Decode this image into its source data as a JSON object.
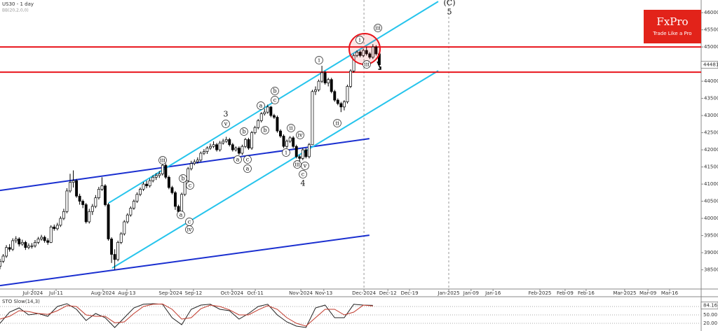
{
  "chart_data": {
    "type": "candlestick",
    "title": "US30 - 1 day",
    "subtitle": "BB(20,2,0,0)",
    "xlim": [
      -10,
      210
    ],
    "ylim": [
      37940,
      46370
    ],
    "xticks": [
      {
        "value": 0.3,
        "label": "Jul-2024"
      },
      {
        "value": 7.6,
        "label": "Jul-11"
      },
      {
        "value": 22.3,
        "label": "Aug-2024"
      },
      {
        "value": 29.8,
        "label": "Aug-13"
      },
      {
        "value": 43.5,
        "label": "Sep-2024"
      },
      {
        "value": 50.7,
        "label": "Sep-12"
      },
      {
        "value": 62.8,
        "label": "Oct-2024"
      },
      {
        "value": 70.1,
        "label": "Oct-11"
      },
      {
        "value": 84.4,
        "label": "Nov-2024"
      },
      {
        "value": 91.6,
        "label": "Nov-13"
      },
      {
        "value": 104.2,
        "label": "Dec-2024"
      },
      {
        "value": 111.7,
        "label": "Dec-12"
      },
      {
        "value": 118.5,
        "label": "Dec-19"
      },
      {
        "value": 130.8,
        "label": "Jan-2025"
      },
      {
        "value": 137.8,
        "label": "Jan-09"
      },
      {
        "value": 144.7,
        "label": "Jan-16"
      },
      {
        "value": 159.4,
        "label": "Feb-2025"
      },
      {
        "value": 167.3,
        "label": "Feb-09"
      },
      {
        "value": 173.9,
        "label": "Feb-16"
      },
      {
        "value": 186,
        "label": "Mar-2025"
      },
      {
        "value": 193.3,
        "label": "Mar-09"
      },
      {
        "value": 200.1,
        "label": "Mar-16"
      }
    ],
    "yticks": [
      38500,
      39000,
      39500,
      40000,
      40500,
      41000,
      41500,
      42000,
      42500,
      43000,
      43500,
      44000,
      44500,
      45000,
      45500,
      46000
    ],
    "last_price": 44481,
    "candles": [
      [
        -10,
        38600,
        38820,
        38520,
        38750
      ],
      [
        -9,
        38750,
        38960,
        38700,
        38900
      ],
      [
        -8,
        38900,
        39220,
        38850,
        39150
      ],
      [
        -7,
        39150,
        39250,
        39030,
        39100
      ],
      [
        -6,
        39100,
        39420,
        39050,
        39350
      ],
      [
        -5,
        39350,
        39480,
        39280,
        39400
      ],
      [
        -4,
        39400,
        39450,
        39180,
        39250
      ],
      [
        -3,
        39250,
        39380,
        39200,
        39300
      ],
      [
        -2,
        39300,
        39350,
        39080,
        39150
      ],
      [
        -1,
        39150,
        39270,
        39100,
        39200
      ],
      [
        0,
        39180,
        39280,
        39120,
        39200
      ],
      [
        1,
        39200,
        39370,
        39150,
        39300
      ],
      [
        2,
        39300,
        39460,
        39250,
        39400
      ],
      [
        3,
        39400,
        39520,
        39350,
        39450
      ],
      [
        4,
        39450,
        39500,
        39290,
        39350
      ],
      [
        5,
        39350,
        39420,
        39230,
        39300
      ],
      [
        6,
        39300,
        39800,
        39280,
        39750
      ],
      [
        7,
        39750,
        39820,
        39640,
        39700
      ],
      [
        8,
        39700,
        39870,
        39650,
        39800
      ],
      [
        9,
        39800,
        40060,
        39750,
        40000
      ],
      [
        10,
        40000,
        40280,
        39950,
        40200
      ],
      [
        11,
        40200,
        40880,
        40150,
        40800
      ],
      [
        12,
        40800,
        41300,
        40750,
        41050
      ],
      [
        13,
        41050,
        41400,
        40900,
        41100
      ],
      [
        14,
        41100,
        41150,
        40600,
        40650
      ],
      [
        15,
        40650,
        40720,
        40400,
        40500
      ],
      [
        16,
        40500,
        40550,
        40300,
        40400
      ],
      [
        17,
        40400,
        40450,
        39850,
        39900
      ],
      [
        18,
        39900,
        40280,
        39850,
        40200
      ],
      [
        19,
        40200,
        40420,
        40100,
        40350
      ],
      [
        20,
        40350,
        40680,
        40300,
        40600
      ],
      [
        21,
        40600,
        40920,
        40550,
        40850
      ],
      [
        22,
        40850,
        41200,
        40800,
        40950
      ],
      [
        23,
        40950,
        41000,
        40350,
        40400
      ],
      [
        24,
        40400,
        40450,
        39350,
        39400
      ],
      [
        25,
        39400,
        39450,
        38700,
        38950
      ],
      [
        26,
        38950,
        39100,
        38500,
        38800
      ],
      [
        27,
        38800,
        39350,
        38750,
        39300
      ],
      [
        28,
        39300,
        39600,
        39250,
        39550
      ],
      [
        29,
        39550,
        39950,
        39500,
        39900
      ],
      [
        30,
        39900,
        40150,
        39850,
        40100
      ],
      [
        31,
        40100,
        40350,
        40050,
        40300
      ],
      [
        32,
        40300,
        40550,
        40250,
        40500
      ],
      [
        33,
        40500,
        40760,
        40450,
        40700
      ],
      [
        34,
        40700,
        40900,
        40650,
        40850
      ],
      [
        35,
        40850,
        41060,
        40800,
        41000
      ],
      [
        36,
        41000,
        41100,
        40880,
        40950
      ],
      [
        37,
        40950,
        41160,
        40900,
        41100
      ],
      [
        38,
        41100,
        41260,
        41050,
        41200
      ],
      [
        39,
        41200,
        41320,
        41120,
        41250
      ],
      [
        40,
        41250,
        41380,
        41180,
        41300
      ],
      [
        41,
        41300,
        41620,
        41250,
        41550
      ],
      [
        42,
        41550,
        41600,
        41150,
        41200
      ],
      [
        43,
        41200,
        41250,
        40850,
        40900
      ],
      [
        44,
        40900,
        40950,
        40700,
        40750
      ],
      [
        45,
        40750,
        40800,
        40250,
        40350
      ],
      [
        46,
        40350,
        40400,
        40150,
        40200
      ],
      [
        47,
        40200,
        40750,
        40150,
        40700
      ],
      [
        48,
        40700,
        41150,
        40650,
        41100
      ],
      [
        49,
        41100,
        41500,
        41050,
        41450
      ],
      [
        50,
        41450,
        41680,
        41400,
        41600
      ],
      [
        51,
        41600,
        41720,
        41550,
        41650
      ],
      [
        52,
        41650,
        41780,
        41600,
        41700
      ],
      [
        53,
        41700,
        41950,
        41650,
        41900
      ],
      [
        54,
        41900,
        42020,
        41850,
        41950
      ],
      [
        55,
        41950,
        42100,
        41880,
        42050
      ],
      [
        56,
        42050,
        42180,
        42000,
        42100
      ],
      [
        57,
        42100,
        42250,
        42050,
        42150
      ],
      [
        58,
        42150,
        42200,
        41950,
        42000
      ],
      [
        59,
        42000,
        42260,
        41950,
        42200
      ],
      [
        60,
        42200,
        42320,
        42150,
        42250
      ],
      [
        61,
        42250,
        42380,
        42200,
        42300
      ],
      [
        62,
        42300,
        42350,
        42100,
        42150
      ],
      [
        63,
        42150,
        42200,
        41950,
        42000
      ],
      [
        64,
        42000,
        42100,
        41950,
        42050
      ],
      [
        65,
        42050,
        42100,
        41850,
        41900
      ],
      [
        66,
        41900,
        42150,
        41850,
        42100
      ],
      [
        67,
        42100,
        42350,
        42050,
        42300
      ],
      [
        68,
        42300,
        42350,
        42000,
        42050
      ],
      [
        69,
        42050,
        42550,
        42000,
        42500
      ],
      [
        70,
        42500,
        42700,
        42450,
        42650
      ],
      [
        71,
        42650,
        42900,
        42600,
        42850
      ],
      [
        72,
        42850,
        43100,
        42800,
        43050
      ],
      [
        73,
        43050,
        43200,
        43000,
        43100
      ],
      [
        74,
        43100,
        43320,
        43050,
        43250
      ],
      [
        75,
        43250,
        43280,
        42950,
        43000
      ],
      [
        76,
        43000,
        43050,
        42900,
        42950
      ],
      [
        77,
        42950,
        43000,
        42500,
        42550
      ],
      [
        78,
        42550,
        42600,
        42350,
        42400
      ],
      [
        79,
        42400,
        42450,
        42050,
        42100
      ],
      [
        80,
        42100,
        42300,
        42050,
        42250
      ],
      [
        81,
        42250,
        42400,
        42200,
        42350
      ],
      [
        82,
        42350,
        42400,
        42050,
        42100
      ],
      [
        83,
        42100,
        42150,
        41750,
        41800
      ],
      [
        84,
        41800,
        41850,
        41650,
        41750
      ],
      [
        85,
        41750,
        42050,
        41700,
        42000
      ],
      [
        86,
        42000,
        42050,
        41750,
        41800
      ],
      [
        87,
        41800,
        42200,
        41750,
        42150
      ],
      [
        88,
        42150,
        43750,
        42150,
        43700
      ],
      [
        89,
        43700,
        43850,
        43600,
        43750
      ],
      [
        90,
        43750,
        44050,
        43700,
        44000
      ],
      [
        91,
        44000,
        44450,
        43950,
        44250
      ],
      [
        92,
        44250,
        44300,
        43900,
        43950
      ],
      [
        93,
        43950,
        44100,
        43850,
        44050
      ],
      [
        94,
        44050,
        44100,
        43650,
        43700
      ],
      [
        95,
        43700,
        43750,
        43400,
        43450
      ],
      [
        96,
        43450,
        43500,
        43300,
        43350
      ],
      [
        97,
        43350,
        43400,
        43100,
        43250
      ],
      [
        98,
        43250,
        43450,
        43150,
        43400
      ],
      [
        99,
        43400,
        43900,
        43350,
        43850
      ],
      [
        100,
        43850,
        44350,
        43800,
        44300
      ],
      [
        101,
        44300,
        44800,
        44250,
        44750
      ],
      [
        102,
        44750,
        44900,
        44700,
        44850
      ],
      [
        103,
        44850,
        44900,
        44700,
        44750
      ],
      [
        104,
        44750,
        44950,
        44700,
        44900
      ],
      [
        105,
        44900,
        45000,
        44750,
        44800
      ],
      [
        106,
        44800,
        44850,
        44650,
        44700
      ],
      [
        107,
        44700,
        45080,
        44650,
        45000
      ],
      [
        108,
        45000,
        45050,
        44750,
        44800
      ],
      [
        109,
        44800,
        44850,
        44450,
        44481
      ]
    ],
    "hlines": [
      {
        "value": 45000,
        "color": "#e8141c"
      },
      {
        "value": 44265,
        "color": "#e8141c"
      }
    ],
    "trendlines": [
      {
        "x": [
          -10,
          105.9
        ],
        "y": [
          40816,
          42327
        ],
        "color": "#1a2fd0"
      },
      {
        "x": [
          -10,
          105.9
        ],
        "y": [
          38040,
          39510
        ],
        "color": "#1a2fd0"
      },
      {
        "x": [
          24.1,
          127.5
        ],
        "y": [
          40449,
          46327
        ],
        "color": "#26c4ec"
      },
      {
        "x": [
          25.2,
          127.5
        ],
        "y": [
          38551,
          44306
        ],
        "color": "#26c4ec"
      }
    ],
    "annotations": [
      "(C)",
      "5",
      "3",
      "v",
      "b",
      "a",
      "c",
      "iii",
      "b",
      "b",
      "ii",
      "iv",
      "i",
      "a",
      "c",
      "a",
      "iii",
      "v",
      "c",
      "4",
      "b",
      "c",
      "a",
      "c",
      "iv",
      "i",
      "ii",
      "i",
      "iii",
      "iii"
    ],
    "logo": {
      "name": "FxPro",
      "tagline": "Trade Like a Pro"
    },
    "indicator": {
      "name": "STO Slow(14,3)",
      "ylim": [
        0,
        100
      ],
      "yticks": [
        {
          "value": 80,
          "label": "80.00"
        },
        {
          "value": 50,
          "label": "50.00"
        },
        {
          "value": 20,
          "label": "20.00"
        }
      ],
      "last": {
        "value": 84.16,
        "label": "84.16"
      },
      "x": [
        -10,
        -7,
        -4,
        -1,
        2,
        5,
        8,
        11,
        14,
        17,
        20,
        23,
        26,
        29,
        32,
        35,
        38,
        41,
        44,
        47,
        50,
        53,
        56,
        59,
        62,
        65,
        68,
        71,
        74,
        77,
        80,
        83,
        86,
        89,
        92,
        95,
        98,
        101,
        104,
        107
      ],
      "series": [
        {
          "color": "#222222",
          "values": [
            20,
            60,
            75,
            50,
            55,
            45,
            80,
            90,
            70,
            30,
            55,
            40,
            5,
            40,
            75,
            88,
            90,
            88,
            40,
            15,
            70,
            85,
            88,
            70,
            65,
            35,
            55,
            80,
            88,
            50,
            25,
            10,
            5,
            75,
            85,
            40,
            40,
            88,
            85,
            84.16
          ]
        },
        {
          "color": "#c0392b",
          "values": [
            35,
            45,
            65,
            62,
            55,
            52,
            65,
            83,
            80,
            50,
            45,
            45,
            22,
            25,
            55,
            80,
            88,
            89,
            70,
            35,
            40,
            72,
            85,
            80,
            68,
            50,
            50,
            68,
            83,
            70,
            40,
            20,
            10,
            40,
            70,
            70,
            50,
            60,
            85,
            82
          ]
        }
      ]
    }
  }
}
